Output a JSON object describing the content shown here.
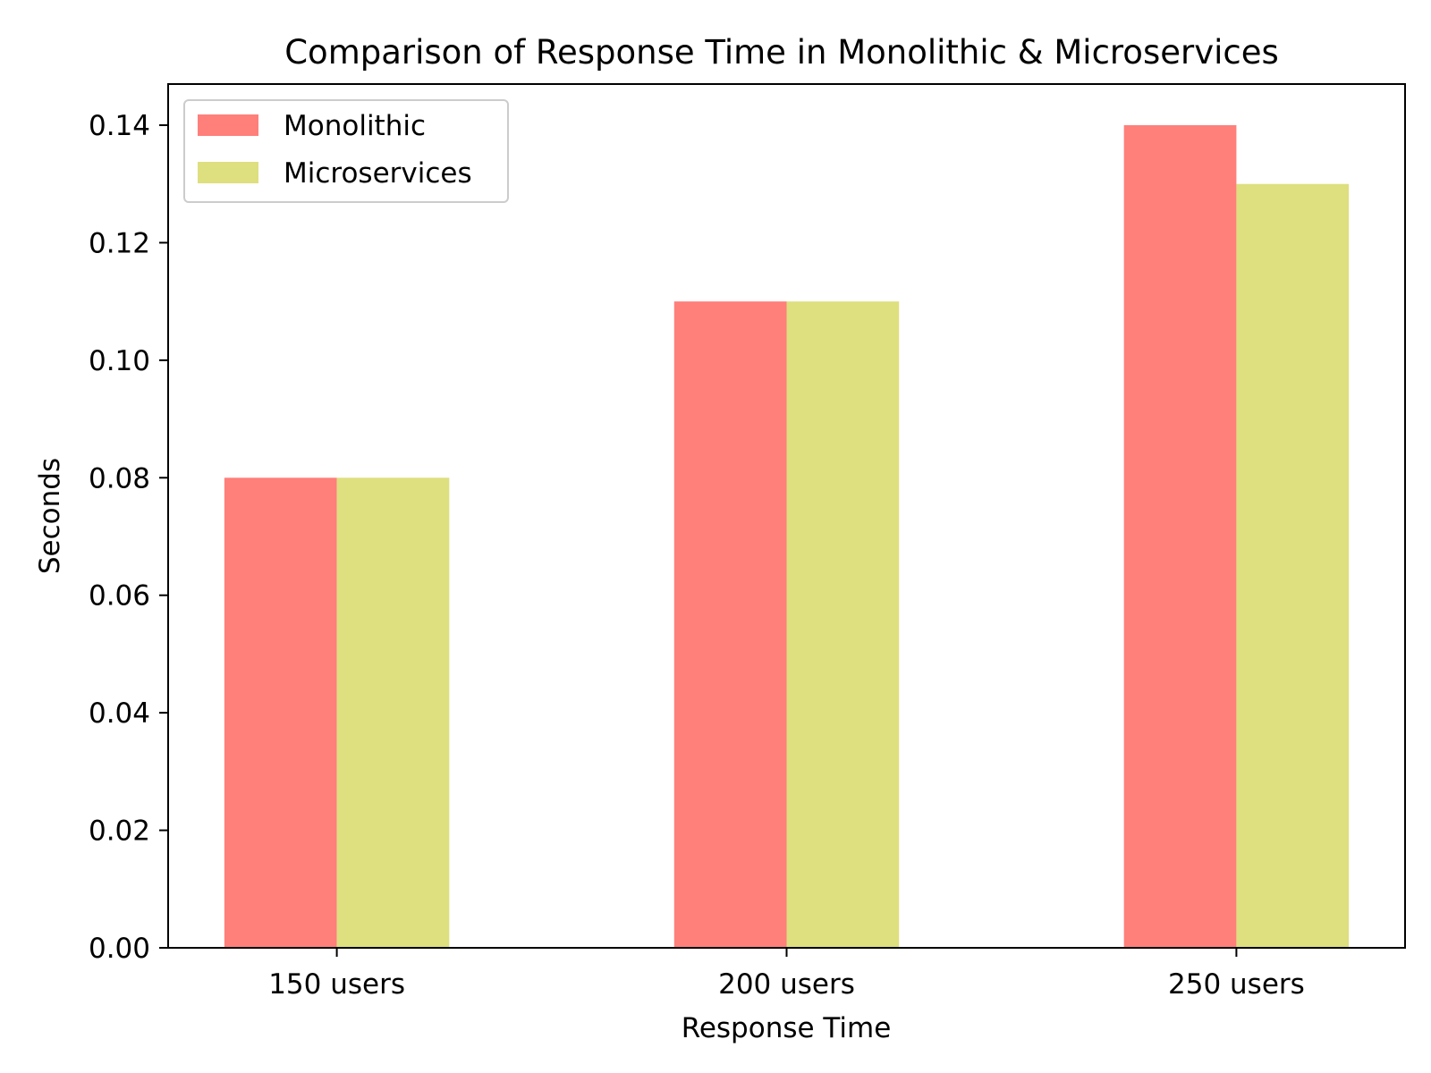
{
  "chart_data": {
    "type": "bar",
    "title": "Comparison of Response Time in Monolithic & Microservices",
    "xlabel": "Response Time",
    "ylabel": "Seconds",
    "categories": [
      "150 users",
      "200 users",
      "250 users"
    ],
    "series": [
      {
        "name": "Monolithic",
        "color": "#ff7f7b",
        "values": [
          0.08,
          0.11,
          0.14
        ]
      },
      {
        "name": "Microservices",
        "color": "#dedf7f",
        "values": [
          0.08,
          0.11,
          0.13
        ]
      }
    ],
    "ylim": [
      0,
      0.147
    ],
    "yticks": [
      0.0,
      0.02,
      0.04,
      0.06,
      0.08,
      0.1,
      0.12,
      0.14
    ],
    "ytick_labels": [
      "0.00",
      "0.02",
      "0.04",
      "0.06",
      "0.08",
      "0.10",
      "0.12",
      "0.14"
    ],
    "grid": false,
    "legend_position": "top-left"
  }
}
